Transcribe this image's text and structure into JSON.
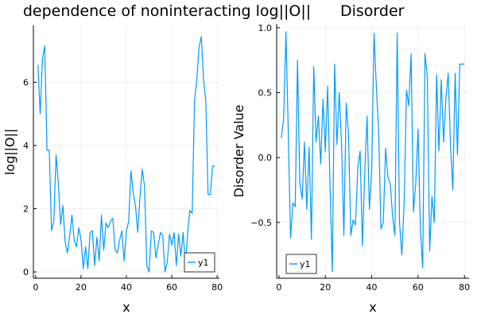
{
  "chart_data": [
    {
      "type": "line",
      "title": "dependence of noninteracting log||O||",
      "xlabel": "x",
      "ylabel": "log||O||",
      "xlim": [
        -1,
        81
      ],
      "ylim": [
        -0.2,
        7.8
      ],
      "xticks": [
        0,
        20,
        40,
        60,
        80
      ],
      "yticks": [
        0,
        2,
        4,
        6
      ],
      "grid": true,
      "legend_position": "bottom-right",
      "color": "#009AFA",
      "series": [
        {
          "name": "y1",
          "x": [
            1,
            2,
            3,
            4,
            5,
            6,
            7,
            8,
            9,
            10,
            11,
            12,
            13,
            14,
            15,
            16,
            17,
            18,
            19,
            20,
            21,
            22,
            23,
            24,
            25,
            26,
            27,
            28,
            29,
            30,
            31,
            32,
            33,
            34,
            35,
            36,
            37,
            38,
            39,
            40,
            41,
            42,
            43,
            44,
            45,
            46,
            47,
            48,
            49,
            50,
            51,
            52,
            53,
            54,
            55,
            56,
            57,
            58,
            59,
            60,
            61,
            62,
            63,
            64,
            65,
            66,
            67,
            68,
            69,
            70,
            71,
            72,
            73,
            74,
            75,
            76,
            77,
            78,
            79
          ],
          "y": [
            6.55,
            5.0,
            6.75,
            7.15,
            3.85,
            3.85,
            1.3,
            1.6,
            3.7,
            2.8,
            1.5,
            2.1,
            0.95,
            0.6,
            1.15,
            1.8,
            1.0,
            0.8,
            1.4,
            1.0,
            0.1,
            0.8,
            0.1,
            1.25,
            1.3,
            0.2,
            1.1,
            0.35,
            1.8,
            0.7,
            1.55,
            1.4,
            1.6,
            1.7,
            0.7,
            0.6,
            1.0,
            1.3,
            0.35,
            1.3,
            1.6,
            3.2,
            2.5,
            2.1,
            1.25,
            2.4,
            3.25,
            2.7,
            0.2,
            0.0,
            1.3,
            1.25,
            0.45,
            0.85,
            1.25,
            1.15,
            0.0,
            0.3,
            1.2,
            0.85,
            1.25,
            0.2,
            1.2,
            0.5,
            1.25,
            0.2,
            1.25,
            1.95,
            1.85,
            5.4,
            6.05,
            7.1,
            7.45,
            6.1,
            5.4,
            2.45,
            2.45,
            3.35,
            3.35
          ]
        }
      ]
    },
    {
      "type": "line",
      "title": "Disorder",
      "xlabel": "x",
      "ylabel": "Disorder Value",
      "xlim": [
        -1,
        82
      ],
      "ylim": [
        -0.93,
        1.03
      ],
      "xticks": [
        0,
        20,
        40,
        60,
        80
      ],
      "yticks": [
        -0.5,
        0.0,
        0.5,
        1.0
      ],
      "ytick_labels": [
        "−0.5",
        "0.0",
        "0.5",
        "1.0"
      ],
      "grid": true,
      "legend_position": "bottom-left",
      "color": "#009AFA",
      "series": [
        {
          "name": "y1",
          "x": [
            1,
            2,
            3,
            4,
            5,
            6,
            7,
            8,
            9,
            10,
            11,
            12,
            13,
            14,
            15,
            16,
            17,
            18,
            19,
            20,
            21,
            22,
            23,
            24,
            25,
            26,
            27,
            28,
            29,
            30,
            31,
            32,
            33,
            34,
            35,
            36,
            37,
            38,
            39,
            40,
            41,
            42,
            43,
            44,
            45,
            46,
            47,
            48,
            49,
            50,
            51,
            52,
            53,
            54,
            55,
            56,
            57,
            58,
            59,
            60,
            61,
            62,
            63,
            64,
            65,
            66,
            67,
            68,
            69,
            70,
            71,
            72,
            73,
            74,
            75,
            76,
            77,
            78,
            79,
            80
          ],
          "y": [
            0.15,
            0.3,
            0.97,
            0.2,
            -0.62,
            -0.35,
            -0.38,
            0.75,
            -0.2,
            -0.32,
            0.12,
            -0.4,
            0.08,
            -0.63,
            0.7,
            0.12,
            0.32,
            -0.05,
            0.45,
            0.05,
            0.55,
            -0.2,
            -0.88,
            0.72,
            0.1,
            0.5,
            0.1,
            -0.6,
            0.42,
            0.18,
            -0.6,
            -0.48,
            -0.52,
            -0.08,
            0.05,
            -0.68,
            -0.12,
            0.32,
            -0.4,
            -0.1,
            0.96,
            0.55,
            0.2,
            -0.55,
            -0.5,
            0.07,
            -0.15,
            -0.2,
            -0.45,
            -0.6,
            0.96,
            -0.5,
            -0.75,
            -0.35,
            0.52,
            0.4,
            0.8,
            -0.42,
            -0.2,
            0.22,
            -0.55,
            -0.85,
            0.8,
            0.62,
            -0.72,
            -0.3,
            -0.5,
            0.64,
            0.05,
            0.6,
            0.12,
            0.45,
            0.65,
            0.1,
            -0.25,
            0.65,
            0.02,
            0.72,
            0.72,
            0.72
          ]
        }
      ]
    }
  ]
}
